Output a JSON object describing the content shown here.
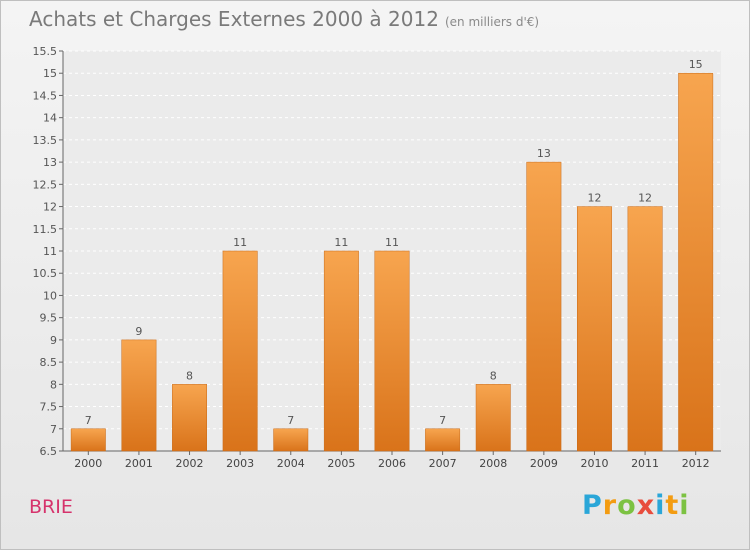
{
  "chart_data": {
    "type": "bar",
    "title": "Achats et Charges Externes 2000 à 2012",
    "subtitle": "(en milliers d'€)",
    "categories": [
      "2000",
      "2001",
      "2002",
      "2003",
      "2004",
      "2005",
      "2006",
      "2007",
      "2008",
      "2009",
      "2010",
      "2011",
      "2012"
    ],
    "values": [
      7,
      9,
      8,
      11,
      7,
      11,
      11,
      7,
      8,
      13,
      12,
      12,
      15
    ],
    "ylim": [
      6.5,
      15.5
    ],
    "yticks": [
      6.5,
      7,
      7.5,
      8,
      8.5,
      9,
      9.5,
      10,
      10.5,
      11,
      11.5,
      12,
      12.5,
      13,
      13.5,
      14,
      14.5,
      15,
      15.5
    ],
    "grid": true,
    "bar_color": "#f08c2c"
  },
  "commune": "BRIE",
  "logo": {
    "letters": [
      "P",
      "r",
      "o",
      "x",
      "i",
      "t",
      "i"
    ],
    "colors": [
      "#2aa6d8",
      "#f39c12",
      "#7cc242",
      "#e84c3d",
      "#2aa6d8",
      "#f39c12",
      "#7cc242"
    ]
  }
}
